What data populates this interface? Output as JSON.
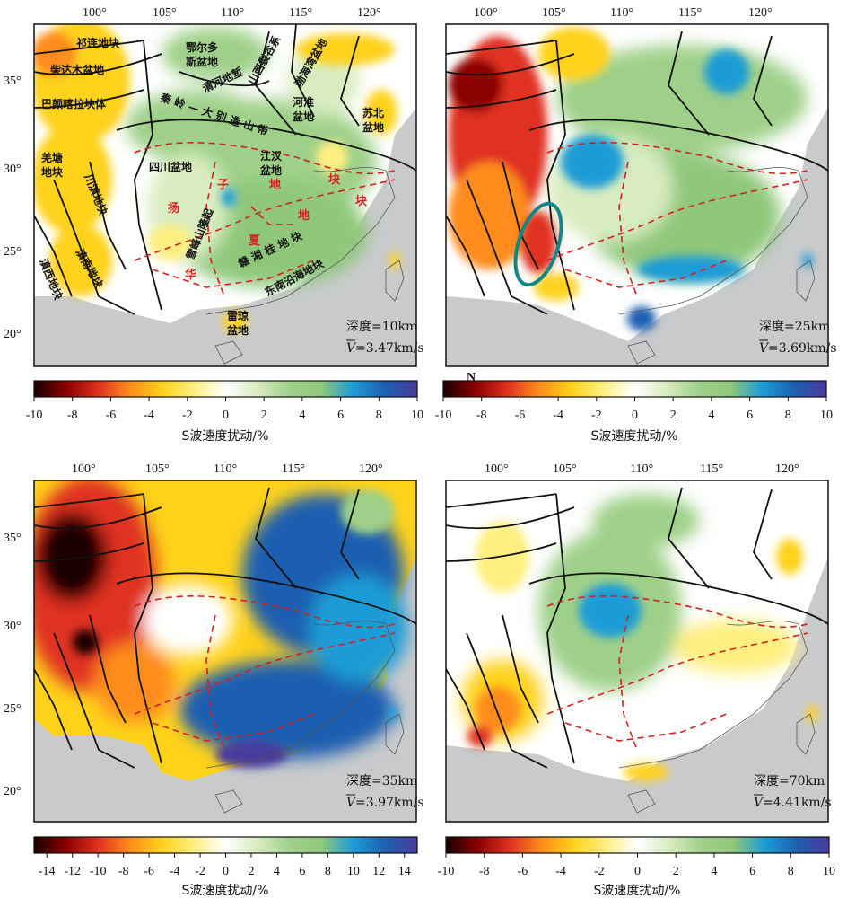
{
  "colormap": [
    "#1a0000",
    "#8b0000",
    "#e03020",
    "#ff8c1a",
    "#ffd21a",
    "#ffef80",
    "#ffffff",
    "#d8ecc0",
    "#9fd089",
    "#8fc77a",
    "#1b9cd6",
    "#1e5fb0",
    "#4a3a9e"
  ],
  "land_color": "#c9cacc",
  "coast_color": "#555555",
  "fault_color": "#111111",
  "block_boundary_color": "#d42020",
  "ellipse_color": "#13868a",
  "lon_ticks": [
    "100°",
    "105°",
    "110°",
    "115°",
    "120°"
  ],
  "lat_ticks": [
    "35°",
    "30°",
    "25°",
    "20°"
  ],
  "panels": [
    {
      "depth_label": "深度=10km",
      "velocity_label": "=3.47km/s",
      "vbar_symbol": "V",
      "colorbar_ticks": [
        "-10",
        "-8",
        "-6",
        "-4",
        "-2",
        "0",
        "2",
        "4",
        "6",
        "8",
        "10"
      ],
      "colorbar_title": "S波速度扰动/%",
      "colorbar_range": [
        -10,
        10
      ]
    },
    {
      "depth_label": "深度=25km",
      "velocity_label": "=3.69km/s",
      "vbar_symbol": "V",
      "north_label": "N",
      "colorbar_ticks": [
        "-10",
        "-8",
        "-6",
        "-4",
        "-2",
        "0",
        "2",
        "4",
        "6",
        "8",
        "10"
      ],
      "colorbar_title": "S波速度扰动/%",
      "colorbar_range": [
        -10,
        10
      ]
    },
    {
      "depth_label": "深度=35km",
      "velocity_label": "=3.97km/s",
      "vbar_symbol": "V",
      "colorbar_ticks": [
        "-14",
        "-12",
        "-10",
        "-8",
        "-6",
        "-4",
        "-2",
        "0",
        "2",
        "4",
        "6",
        "8",
        "10",
        "12",
        "14"
      ],
      "colorbar_title": "S波速度扰动/%",
      "colorbar_range": [
        -15,
        15
      ]
    },
    {
      "depth_label": "深度=70km",
      "velocity_label": "=4.41km/s",
      "vbar_symbol": "V",
      "colorbar_ticks": [
        "-10",
        "-8",
        "-6",
        "-4",
        "-2",
        "0",
        "2",
        "4",
        "6",
        "8",
        "10"
      ],
      "colorbar_title": "S波速度扰动/%",
      "colorbar_range": [
        -10,
        10
      ]
    }
  ],
  "geologic_labels": {
    "qilian": "祁连地块",
    "qaidam": "柴达木盆地",
    "bayanhar": "巴颜喀拉块体",
    "qiangtang": "羌塘",
    "qiangtang2": "地块",
    "chuandian": "川滇地块",
    "diannan": "滇南地块",
    "dianxi": "滇西地块",
    "ordos1": "鄂尔多",
    "ordos2": "斯盆地",
    "weihe": "渭河地堑",
    "shanxi": "山西裂谷系",
    "bohai": "渤海湾盆地",
    "huaihe1": "河淮",
    "huaihe2": "盆地",
    "subei1": "苏北",
    "subei2": "盆地",
    "qinling": "秦 岭 — 大 别 造 山 带",
    "sichuan": "四川盆地",
    "jianghan1": "江汉",
    "jianghan2": "盆地",
    "xuefeng": "雪峰山隆起",
    "ganxiang": "赣 湘 桂 地 块",
    "dongnan": "东南沿海地块",
    "leiqiong1": "雷琼",
    "leiqiong2": "盆地",
    "yang": "扬",
    "zi": "子",
    "hua": "华",
    "xia": "夏",
    "di1": "地",
    "di2": "地",
    "kuai1": "块",
    "kuai2": "块"
  }
}
